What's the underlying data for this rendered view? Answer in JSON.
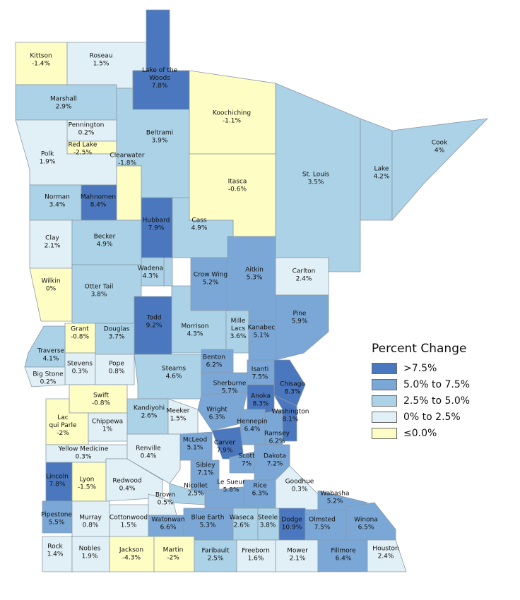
{
  "legend": {
    "title": "Percent Change",
    "classes": [
      {
        "label": ">7.5%",
        "color": "#4a77bd"
      },
      {
        "label": "5.0% to 7.5%",
        "color": "#7aa7d6"
      },
      {
        "label": "2.5% to 5.0%",
        "color": "#abd2e6"
      },
      {
        "label": "0% to 2.5%",
        "color": "#e1f0f6"
      },
      {
        "label": "≤0.0%",
        "color": "#fdfdc4"
      }
    ]
  },
  "counties": [
    {
      "name": "Kittson",
      "value": "-1.4%",
      "cls": 4
    },
    {
      "name": "Roseau",
      "value": "1.5%",
      "cls": 3
    },
    {
      "name": "Lake of the Woods",
      "value": "7.8%",
      "cls": 0
    },
    {
      "name": "Marshall",
      "value": "2.9%",
      "cls": 2
    },
    {
      "name": "Koochiching",
      "value": "-1.1%",
      "cls": 4
    },
    {
      "name": "Pennington",
      "value": "0.2%",
      "cls": 3
    },
    {
      "name": "Red Lake",
      "value": "-2.5%",
      "cls": 4
    },
    {
      "name": "Polk",
      "value": "1.9%",
      "cls": 3
    },
    {
      "name": "Beltrami",
      "value": "3.9%",
      "cls": 2
    },
    {
      "name": "Clearwater",
      "value": "-1.8%",
      "cls": 4
    },
    {
      "name": "Itasca",
      "value": "-0.6%",
      "cls": 4
    },
    {
      "name": "St. Louis",
      "value": "3.5%",
      "cls": 2
    },
    {
      "name": "Lake",
      "value": "4.2%",
      "cls": 2
    },
    {
      "name": "Cook",
      "value": "4%",
      "cls": 2
    },
    {
      "name": "Norman",
      "value": "3.4%",
      "cls": 2
    },
    {
      "name": "Mahnomen",
      "value": "8.4%",
      "cls": 0
    },
    {
      "name": "Hubbard",
      "value": "7.9%",
      "cls": 0
    },
    {
      "name": "Cass",
      "value": "4.9%",
      "cls": 2
    },
    {
      "name": "Clay",
      "value": "2.1%",
      "cls": 3
    },
    {
      "name": "Becker",
      "value": "4.9%",
      "cls": 2
    },
    {
      "name": "Wadena",
      "value": "4.3%",
      "cls": 2
    },
    {
      "name": "Crow Wing",
      "value": "5.2%",
      "cls": 1
    },
    {
      "name": "Aitkin",
      "value": "5.3%",
      "cls": 1
    },
    {
      "name": "Carlton",
      "value": "2.4%",
      "cls": 3
    },
    {
      "name": "Wilkin",
      "value": "0%",
      "cls": 4
    },
    {
      "name": "Otter Tail",
      "value": "3.8%",
      "cls": 2
    },
    {
      "name": "Todd",
      "value": "9.2%",
      "cls": 0
    },
    {
      "name": "Morrison",
      "value": "4.3%",
      "cls": 2
    },
    {
      "name": "Mille Lacs",
      "value": "3.6%",
      "cls": 2
    },
    {
      "name": "Kanabec",
      "value": "5.1%",
      "cls": 1
    },
    {
      "name": "Pine",
      "value": "5.9%",
      "cls": 1
    },
    {
      "name": "Grant",
      "value": "-0.8%",
      "cls": 4
    },
    {
      "name": "Douglas",
      "value": "3.7%",
      "cls": 2
    },
    {
      "name": "Traverse",
      "value": "4.1%",
      "cls": 2
    },
    {
      "name": "Stevens",
      "value": "0.3%",
      "cls": 3
    },
    {
      "name": "Pope",
      "value": "0.8%",
      "cls": 3
    },
    {
      "name": "Stearns",
      "value": "4.6%",
      "cls": 2
    },
    {
      "name": "Benton",
      "value": "6.2%",
      "cls": 1
    },
    {
      "name": "Isanti",
      "value": "7.5%",
      "cls": 1
    },
    {
      "name": "Chisago",
      "value": "8.3%",
      "cls": 0
    },
    {
      "name": "Big Stone",
      "value": "0.2%",
      "cls": 3
    },
    {
      "name": "Swift",
      "value": "-0.8%",
      "cls": 4
    },
    {
      "name": "Sherburne",
      "value": "5.7%",
      "cls": 1
    },
    {
      "name": "Anoka",
      "value": "8.3%",
      "cls": 0
    },
    {
      "name": "Washington",
      "value": "8.1%",
      "cls": 0
    },
    {
      "name": "Kandiyohi",
      "value": "2.6%",
      "cls": 2
    },
    {
      "name": "Wright",
      "value": "6.3%",
      "cls": 1
    },
    {
      "name": "Lac qui Parle",
      "value": "-2%",
      "cls": 4
    },
    {
      "name": "Chippewa",
      "value": "1%",
      "cls": 3
    },
    {
      "name": "Meeker",
      "value": "1.5%",
      "cls": 3
    },
    {
      "name": "Hennepin",
      "value": "6.4%",
      "cls": 1
    },
    {
      "name": "Ramsey",
      "value": "6.2%",
      "cls": 1
    },
    {
      "name": "McLeod",
      "value": "5.1%",
      "cls": 1
    },
    {
      "name": "Carver",
      "value": "7.9%",
      "cls": 0
    },
    {
      "name": "Yellow Medicine",
      "value": "0.3%",
      "cls": 3
    },
    {
      "name": "Renville",
      "value": "0.4%",
      "cls": 3
    },
    {
      "name": "Scott",
      "value": "7%",
      "cls": 1
    },
    {
      "name": "Dakota",
      "value": "7.2%",
      "cls": 1
    },
    {
      "name": "Sibley",
      "value": "7.1%",
      "cls": 1
    },
    {
      "name": "Lincoln",
      "value": "7.8%",
      "cls": 0
    },
    {
      "name": "Lyon",
      "value": "-1.5%",
      "cls": 4
    },
    {
      "name": "Redwood",
      "value": "0.4%",
      "cls": 3
    },
    {
      "name": "Nicollet",
      "value": "2.5%",
      "cls": 2
    },
    {
      "name": "Le Sueur",
      "value": "5.8%",
      "cls": 1
    },
    {
      "name": "Rice",
      "value": "6.3%",
      "cls": 1
    },
    {
      "name": "Goodhue",
      "value": "0.3%",
      "cls": 3
    },
    {
      "name": "Wabasha",
      "value": "5.2%",
      "cls": 1
    },
    {
      "name": "Brown",
      "value": "0.5%",
      "cls": 3
    },
    {
      "name": "Pipestone",
      "value": "5.5%",
      "cls": 1
    },
    {
      "name": "Murray",
      "value": "0.8%",
      "cls": 3
    },
    {
      "name": "Cottonwood",
      "value": "1.5%",
      "cls": 3
    },
    {
      "name": "Watonwan",
      "value": "6.6%",
      "cls": 1
    },
    {
      "name": "Blue Earth",
      "value": "5.3%",
      "cls": 1
    },
    {
      "name": "Waseca",
      "value": "2.6%",
      "cls": 2
    },
    {
      "name": "Steele",
      "value": "3.8%",
      "cls": 2
    },
    {
      "name": "Dodge",
      "value": "10.9%",
      "cls": 0
    },
    {
      "name": "Olmsted",
      "value": "7.5%",
      "cls": 1
    },
    {
      "name": "Winona",
      "value": "6.5%",
      "cls": 1
    },
    {
      "name": "Rock",
      "value": "1.4%",
      "cls": 3
    },
    {
      "name": "Nobles",
      "value": "1.9%",
      "cls": 3
    },
    {
      "name": "Jackson",
      "value": "-4.3%",
      "cls": 4
    },
    {
      "name": "Martin",
      "value": "-2%",
      "cls": 4
    },
    {
      "name": "Faribault",
      "value": "2.5%",
      "cls": 2
    },
    {
      "name": "Freeborn",
      "value": "1.6%",
      "cls": 3
    },
    {
      "name": "Mower",
      "value": "2.1%",
      "cls": 3
    },
    {
      "name": "Fillmore",
      "value": "6.4%",
      "cls": 1
    },
    {
      "name": "Houston",
      "value": "2.4%",
      "cls": 3
    }
  ]
}
